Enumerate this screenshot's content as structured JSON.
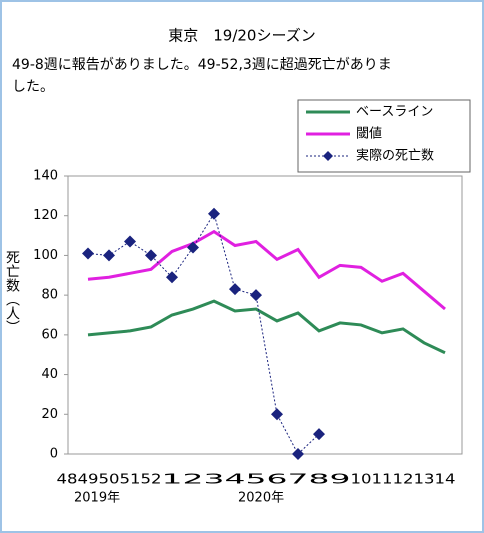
{
  "chart_data": {
    "type": "line",
    "title": "東京　19/20シーズン",
    "subtitle": [
      "49-8週に報告がありました。49-52,3週に超過死亡がありま",
      "した。"
    ],
    "y_label": "死亡数（人）",
    "annotations": [
      "2019年",
      "2020年"
    ],
    "categories": [
      "48",
      "49",
      "50",
      "51",
      "52",
      "1",
      "2",
      "3",
      "4",
      "5",
      "6",
      "7",
      "8",
      "9",
      "10",
      "11",
      "12",
      "13",
      "14"
    ],
    "series": [
      {
        "name": "ベースライン",
        "color": "#2e8b57",
        "marker": false,
        "values": [
          null,
          60,
          61,
          62,
          64,
          70,
          73,
          77,
          72,
          73,
          67,
          71,
          62,
          66,
          65,
          61,
          63,
          56,
          51
        ]
      },
      {
        "name": "閾値",
        "color": "#e020e0",
        "marker": false,
        "values": [
          null,
          88,
          89,
          91,
          93,
          102,
          106,
          112,
          105,
          107,
          98,
          103,
          89,
          95,
          94,
          87,
          91,
          82,
          73
        ]
      },
      {
        "name": "実際の死亡数",
        "color": "#1a237e",
        "marker": true,
        "values": [
          null,
          101,
          100,
          107,
          100,
          89,
          104,
          121,
          83,
          80,
          20,
          0,
          10,
          null,
          null,
          null,
          null,
          null,
          null
        ]
      }
    ],
    "ylim": [
      0,
      140
    ],
    "yticks": [
      0,
      20,
      40,
      60,
      80,
      100,
      120,
      140
    ],
    "grid": false
  }
}
